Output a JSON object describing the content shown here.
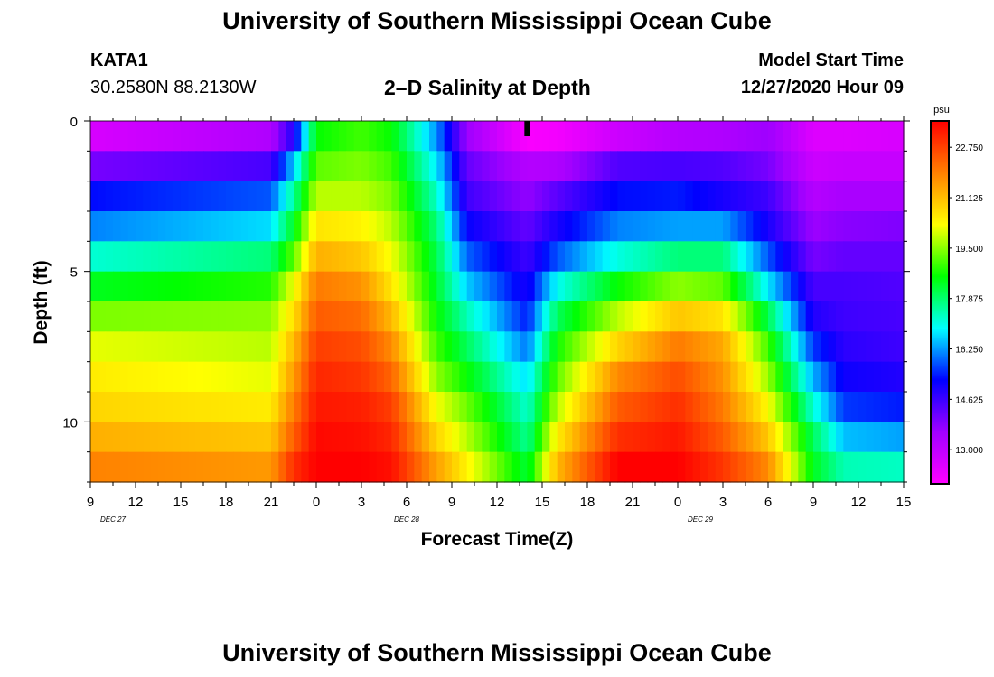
{
  "header": {
    "title": "University of Southern Mississippi Ocean Cube",
    "station_id": "KATA1",
    "station_location": "30.2580N 88.2130W",
    "start_label": "Model Start Time",
    "start_value": "12/27/2020 Hour 09"
  },
  "footer": {
    "title": "University of Southern Mississippi Ocean Cube"
  },
  "chart_data": {
    "type": "heatmap",
    "title": "2–D Salinity at Depth",
    "xlabel": "Forecast Time(Z)",
    "ylabel": "Depth (ft)",
    "x_ticks": [
      "9",
      "12",
      "15",
      "18",
      "21",
      "0",
      "3",
      "6",
      "9",
      "12",
      "15",
      "18",
      "21",
      "0",
      "3",
      "6",
      "9",
      "12",
      "15"
    ],
    "date_labels": [
      {
        "label": "DEC 27",
        "at_hour": 3
      },
      {
        "label": "DEC 28",
        "at_hour": 42
      },
      {
        "label": "DEC 29",
        "at_hour": 81
      }
    ],
    "x_hours_range": [
      0,
      54
    ],
    "y_ticks": [
      "0",
      "5",
      "10"
    ],
    "y_tick_values": [
      0,
      5,
      10
    ],
    "ylim": [
      0,
      12
    ],
    "y_reversed": true,
    "depth_levels_ft": [
      0.5,
      1.5,
      2.5,
      3.5,
      4.5,
      5.5,
      6.5,
      7.5,
      8.5,
      9.5,
      10.5,
      11.5
    ],
    "colorbar": {
      "unit": "psu",
      "tick_labels": [
        "22.750",
        "21.125",
        "19.500",
        "17.875",
        "16.250",
        "14.625",
        "13.000"
      ],
      "tick_values": [
        22.75,
        21.125,
        19.5,
        17.875,
        16.25,
        14.625,
        13.0
      ],
      "range": [
        11.9,
        23.6
      ],
      "colors": [
        "#ff00ff",
        "#a000ff",
        "#0000ff",
        "#00ffff",
        "#00ff00",
        "#ffff00",
        "#ff8000",
        "#ff0000"
      ]
    },
    "marker": {
      "at_hour": 29
    },
    "salinity_profiles": [
      {
        "hour": 0,
        "values": [
          12.6,
          14.0,
          15.3,
          16.1,
          17.2,
          18.4,
          19.4,
          20.1,
          20.5,
          20.8,
          21.3,
          21.9
        ]
      },
      {
        "hour": 12,
        "values": [
          13.3,
          14.5,
          15.8,
          16.7,
          17.8,
          18.8,
          19.5,
          19.8,
          20.1,
          20.5,
          21.0,
          21.6
        ]
      },
      {
        "hour": 13.5,
        "values": [
          14.9,
          16.6,
          17.6,
          18.4,
          19.2,
          20.2,
          20.7,
          21.2,
          21.6,
          22.0,
          22.4,
          23.0
        ]
      },
      {
        "hour": 15,
        "values": [
          18.6,
          19.2,
          19.8,
          20.6,
          21.3,
          22.0,
          22.4,
          22.8,
          23.1,
          23.3,
          23.5,
          23.6
        ]
      },
      {
        "hour": 18,
        "values": [
          19.0,
          19.4,
          19.8,
          20.4,
          21.0,
          21.7,
          22.2,
          22.6,
          22.9,
          23.2,
          23.4,
          23.6
        ]
      },
      {
        "hour": 20,
        "values": [
          18.6,
          19.0,
          19.4,
          19.8,
          20.2,
          20.6,
          21.2,
          21.8,
          22.3,
          22.8,
          23.1,
          23.4
        ]
      },
      {
        "hour": 23,
        "values": [
          16.2,
          16.8,
          17.3,
          17.8,
          18.1,
          18.3,
          18.6,
          19.0,
          19.5,
          20.2,
          20.8,
          21.5
        ]
      },
      {
        "hour": 25,
        "values": [
          13.6,
          14.2,
          14.6,
          15.2,
          15.9,
          16.6,
          17.4,
          18.0,
          18.6,
          19.3,
          19.8,
          20.4
        ]
      },
      {
        "hour": 29,
        "values": [
          12.0,
          13.2,
          13.7,
          14.2,
          14.6,
          15.0,
          15.4,
          16.0,
          16.7,
          17.2,
          17.6,
          18.2
        ]
      },
      {
        "hour": 31,
        "values": [
          12.1,
          13.3,
          14.3,
          15.0,
          15.8,
          17.0,
          18.0,
          18.7,
          19.2,
          19.8,
          20.5,
          21.2
        ]
      },
      {
        "hour": 35,
        "values": [
          12.8,
          14.4,
          15.3,
          16.1,
          17.1,
          18.6,
          19.8,
          20.8,
          21.8,
          22.4,
          23.0,
          23.6
        ]
      },
      {
        "hour": 39,
        "values": [
          13.2,
          14.5,
          15.4,
          16.3,
          17.8,
          19.5,
          21.0,
          22.0,
          22.6,
          23.0,
          23.3,
          23.6
        ]
      },
      {
        "hour": 42,
        "values": [
          13.3,
          14.4,
          15.0,
          16.3,
          17.8,
          19.2,
          20.6,
          21.4,
          21.7,
          22.0,
          22.4,
          22.9
        ]
      },
      {
        "hour": 45,
        "values": [
          13.6,
          14.0,
          14.6,
          15.0,
          15.8,
          16.8,
          18.1,
          19.0,
          19.6,
          20.3,
          21.0,
          21.8
        ]
      },
      {
        "hour": 48,
        "values": [
          12.5,
          12.8,
          13.2,
          13.6,
          14.0,
          14.5,
          14.9,
          15.6,
          16.4,
          17.2,
          18.0,
          18.4
        ]
      },
      {
        "hour": 50,
        "values": [
          12.5,
          12.9,
          13.4,
          13.8,
          14.2,
          14.5,
          14.6,
          14.8,
          15.1,
          15.6,
          16.5,
          17.4
        ]
      },
      {
        "hour": 54,
        "values": [
          12.6,
          12.9,
          13.4,
          13.9,
          14.2,
          14.4,
          14.5,
          14.6,
          14.9,
          15.4,
          16.3,
          17.3
        ]
      }
    ]
  }
}
